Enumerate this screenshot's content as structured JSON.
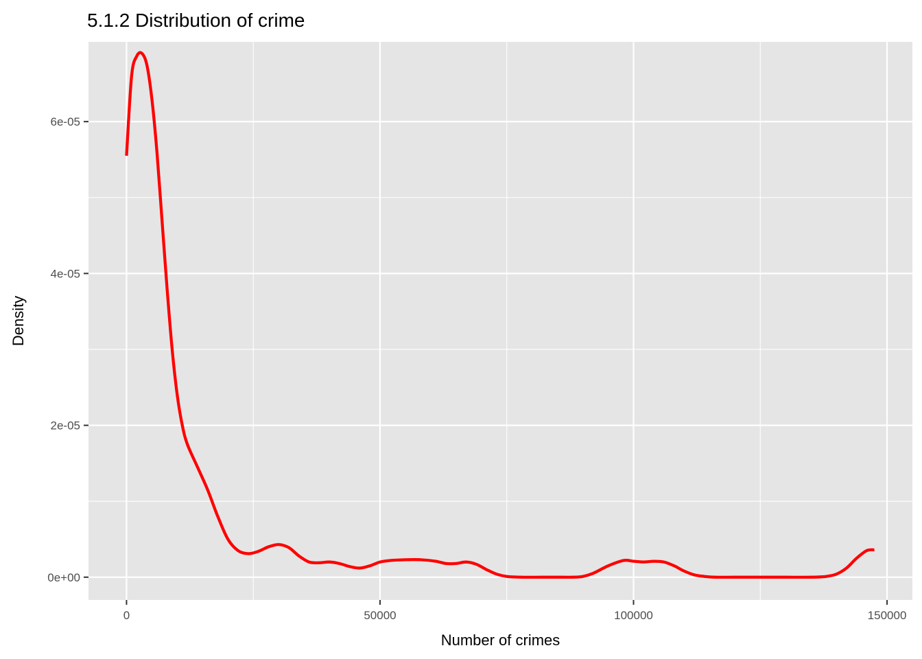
{
  "chart_data": {
    "type": "line",
    "title": "5.1.2 Distribution of crime",
    "xlabel": "Number of crimes",
    "ylabel": "Density",
    "xlim": [
      -7500,
      155000
    ],
    "ylim": [
      -3e-06,
      7.05e-05
    ],
    "x_ticks": [
      0,
      50000,
      100000,
      150000
    ],
    "x_tick_labels": [
      "0",
      "50000",
      "100000",
      "150000"
    ],
    "x_minor_ticks": [
      25000,
      75000,
      125000
    ],
    "y_ticks": [
      0,
      2e-05,
      4e-05,
      6e-05
    ],
    "y_tick_labels": [
      "0e+00",
      "2e-05",
      "4e-05",
      "6e-05"
    ],
    "y_minor_ticks": [
      1e-05,
      3e-05,
      5e-05
    ],
    "grid": true,
    "legend": "none",
    "colors": {
      "line": "#ff0000",
      "panel": "#e5e5e5",
      "grid": "#ffffff",
      "tick_text": "#4d4d4d"
    },
    "series": [
      {
        "x": [
          0,
          1000,
          2000,
          3000,
          4000,
          5000,
          6000,
          7000,
          8000,
          9000,
          10000,
          11000,
          12000,
          14000,
          16000,
          18000,
          20000,
          22000,
          24000,
          26000,
          28000,
          30000,
          32000,
          34000,
          36000,
          38000,
          40000,
          42000,
          44000,
          46000,
          48000,
          50000,
          52000,
          55000,
          58000,
          61000,
          63000,
          65000,
          67000,
          69000,
          71000,
          73000,
          75000,
          78000,
          82000,
          86000,
          88000,
          90000,
          92000,
          95000,
          98000,
          100000,
          102000,
          104000,
          106000,
          108000,
          110000,
          112000,
          114000,
          116000,
          120000,
          125000,
          130000,
          135000,
          138000,
          140000,
          142000,
          144000,
          146000,
          147500
        ],
        "y": [
          5.55e-05,
          6.6e-05,
          6.86e-05,
          6.9e-05,
          6.75e-05,
          6.3e-05,
          5.6e-05,
          4.7e-05,
          3.8e-05,
          3e-05,
          2.4e-05,
          2e-05,
          1.75e-05,
          1.45e-05,
          1.15e-05,
          8e-06,
          5e-06,
          3.5e-06,
          3.1e-06,
          3.4e-06,
          4e-06,
          4.3e-06,
          3.9e-06,
          2.8e-06,
          2e-06,
          1.9e-06,
          2e-06,
          1.8e-06,
          1.4e-06,
          1.2e-06,
          1.5e-06,
          2e-06,
          2.2e-06,
          2.3e-06,
          2.3e-06,
          2.1e-06,
          1.8e-06,
          1.8e-06,
          2e-06,
          1.7e-06,
          1e-06,
          4e-07,
          1e-07,
          0.0,
          0.0,
          0.0,
          0.0,
          1e-07,
          5e-07,
          1.5e-06,
          2.2e-06,
          2.1e-06,
          2e-06,
          2.1e-06,
          2e-06,
          1.5e-06,
          8e-07,
          3e-07,
          1e-07,
          0.0,
          0.0,
          0.0,
          0.0,
          0.0,
          1e-07,
          4e-07,
          1.2e-06,
          2.5e-06,
          3.5e-06,
          3.6e-06
        ]
      }
    ]
  }
}
